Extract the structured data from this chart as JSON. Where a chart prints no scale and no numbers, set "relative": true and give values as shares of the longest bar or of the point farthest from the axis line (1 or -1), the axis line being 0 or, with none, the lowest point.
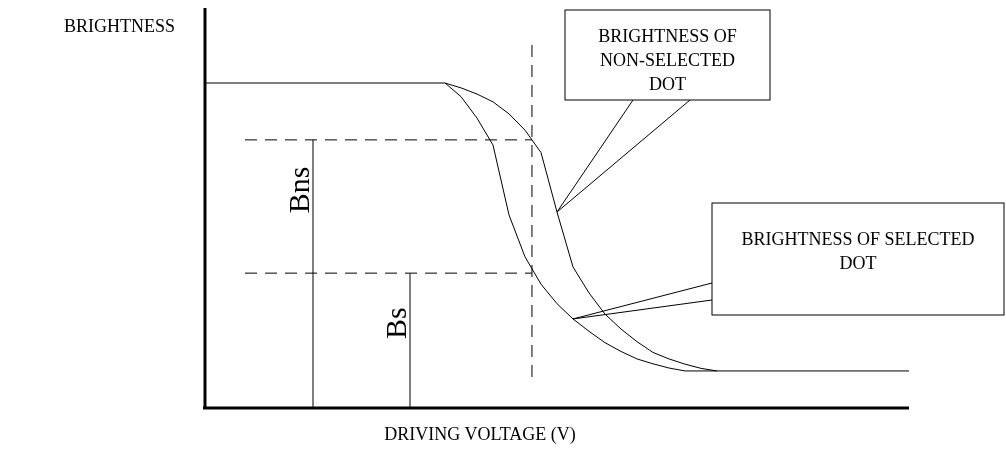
{
  "chart_data": {
    "type": "line",
    "relative": true,
    "xlabel": "DRIVING VOLTAGE (V)",
    "ylabel": "BRIGHTNESS",
    "line_style": "solid",
    "marker": "none",
    "categories": [
      null,
      null,
      null,
      null,
      null,
      null,
      null,
      null,
      null,
      null,
      null,
      null,
      null,
      null,
      null,
      null,
      null,
      null,
      null,
      null,
      null,
      null,
      null,
      null,
      null,
      null,
      null,
      null,
      null,
      null,
      null,
      null,
      null,
      null,
      null,
      null,
      null,
      null,
      null,
      null,
      null,
      null,
      null,
      null,
      null
    ],
    "series": [
      {
        "color": "#000000",
        "values": [
          1,
          1,
          1,
          1,
          1,
          1,
          1,
          1,
          1,
          1,
          1,
          1,
          1,
          1,
          1,
          1,
          0.985,
          0.966,
          0.942,
          0.905,
          0.855,
          0.786,
          0.603,
          0.434,
          0.354,
          0.289,
          0.243,
          0.204,
          0.171,
          0.151,
          0.135,
          0.122,
          0.114,
          0.114,
          0.114,
          0.114,
          0.114,
          0.114,
          0.114,
          0.114,
          0.114,
          0.114,
          0.114,
          0.114,
          0.114
        ]
      },
      {
        "color": "#000000",
        "values": [
          null,
          null,
          null,
          null,
          null,
          null,
          null,
          null,
          null,
          null,
          null,
          null,
          null,
          null,
          null,
          1,
          0.958,
          0.892,
          0.809,
          0.594,
          0.465,
          0.381,
          0.321,
          0.274,
          0.236,
          0.201,
          0.174,
          0.151,
          0.136,
          0.123,
          0.114,
          0.114,
          0.114,
          null,
          null,
          null,
          null,
          null,
          null,
          null,
          null,
          null,
          null,
          null,
          null
        ]
      }
    ],
    "ref_lines": [
      {
        "axis": "y",
        "value": 0.825,
        "label": "Bns",
        "line_style": "dashed"
      },
      {
        "axis": "y",
        "value": 0.415,
        "label": "Bs",
        "line_style": "dashed"
      }
    ],
    "annotations": [
      "BRIGHTNESS OF NON-SELECTED DOT",
      "BRIGHTNESS OF SELECTED DOT"
    ]
  }
}
